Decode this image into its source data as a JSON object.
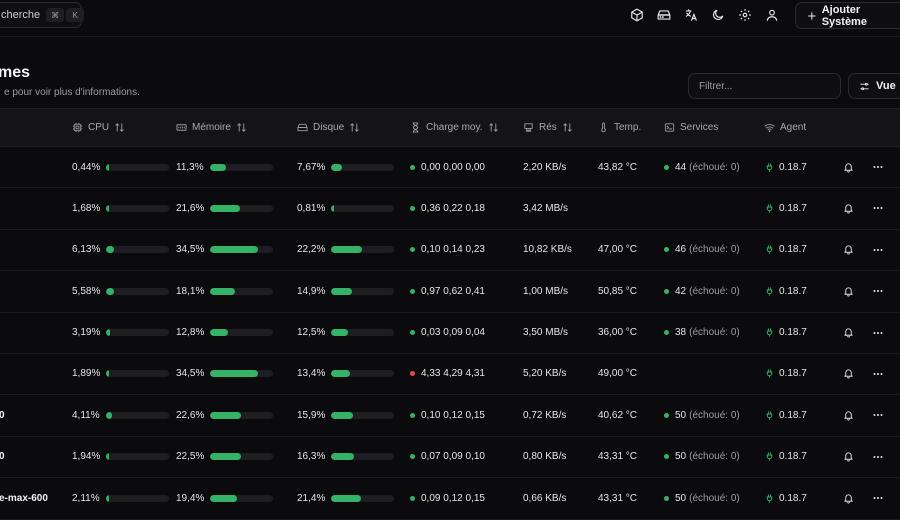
{
  "topbar": {
    "search_label": "cherche",
    "kbd_modifier": "⌘",
    "kbd_key": "K",
    "icons": [
      "cube-icon",
      "hard-drive-icon",
      "language-icon",
      "moon-icon",
      "settings-icon",
      "user-icon"
    ],
    "add_button_label": "Ajouter Système"
  },
  "header": {
    "title": "mes",
    "subtitle": "e pour voir plus d'informations.",
    "filter_placeholder": "Filtrer...",
    "view_button_label": "Vue"
  },
  "table": {
    "columns": {
      "cpu": "CPU",
      "memory": "Mémoire",
      "disk": "Disque",
      "load": "Charge moy.",
      "net": "Rés",
      "temp": "Temp.",
      "services": "Services",
      "agent": "Agent"
    },
    "rows": [
      {
        "name": "",
        "cpu": "0,44%",
        "cpu_pct": 0.44,
        "mem": "11,3%",
        "mem_pct": 11.3,
        "disk": "7,67%",
        "disk_pct": 7.67,
        "load_status": "ok",
        "load": "0,00 0,00 0,00",
        "net": "2,20 KB/s",
        "temp": "43,82 °C",
        "services": "44",
        "services_failed": "(échoué: 0)",
        "agent": "0.18.7"
      },
      {
        "name": "",
        "cpu": "1,68%",
        "cpu_pct": 1.68,
        "mem": "21,6%",
        "mem_pct": 21.6,
        "disk": "0,81%",
        "disk_pct": 0.81,
        "load_status": "ok",
        "load": "0,36 0,22 0,18",
        "net": "3,42 MB/s",
        "temp": "",
        "services": "",
        "services_failed": "",
        "agent": "0.18.7"
      },
      {
        "name": "",
        "cpu": "6,13%",
        "cpu_pct": 6.13,
        "mem": "34,5%",
        "mem_pct": 34.5,
        "disk": "22,2%",
        "disk_pct": 22.2,
        "load_status": "ok",
        "load": "0,10 0,14 0,23",
        "net": "10,82 KB/s",
        "temp": "47,00 °C",
        "services": "46",
        "services_failed": "(échoué: 0)",
        "agent": "0.18.7"
      },
      {
        "name": "",
        "cpu": "5,58%",
        "cpu_pct": 5.58,
        "mem": "18,1%",
        "mem_pct": 18.1,
        "disk": "14,9%",
        "disk_pct": 14.9,
        "load_status": "ok",
        "load": "0,97 0,62 0,41",
        "net": "1,00 MB/s",
        "temp": "50,85 °C",
        "services": "42",
        "services_failed": "(échoué: 0)",
        "agent": "0.18.7"
      },
      {
        "name": "",
        "cpu": "3,19%",
        "cpu_pct": 3.19,
        "mem": "12,8%",
        "mem_pct": 12.8,
        "disk": "12,5%",
        "disk_pct": 12.5,
        "load_status": "ok",
        "load": "0,03 0,09 0,04",
        "net": "3,50 MB/s",
        "temp": "36,00 °C",
        "services": "38",
        "services_failed": "(échoué: 0)",
        "agent": "0.18.7"
      },
      {
        "name": "",
        "cpu": "1,89%",
        "cpu_pct": 1.89,
        "mem": "34,5%",
        "mem_pct": 34.5,
        "disk": "13,4%",
        "disk_pct": 13.4,
        "load_status": "high",
        "load": "4,33 4,29 4,31",
        "net": "5,20 KB/s",
        "temp": "49,00 °C",
        "services": "",
        "services_failed": "",
        "agent": "0.18.7"
      },
      {
        "name": "0",
        "cpu": "4,11%",
        "cpu_pct": 4.11,
        "mem": "22,6%",
        "mem_pct": 22.6,
        "disk": "15,9%",
        "disk_pct": 15.9,
        "load_status": "ok",
        "load": "0,10 0,12 0,15",
        "net": "0,72 KB/s",
        "temp": "40,62 °C",
        "services": "50",
        "services_failed": "(échoué: 0)",
        "agent": "0.18.7"
      },
      {
        "name": "0",
        "cpu": "1,94%",
        "cpu_pct": 1.94,
        "mem": "22,5%",
        "mem_pct": 22.5,
        "disk": "16,3%",
        "disk_pct": 16.3,
        "load_status": "ok",
        "load": "0,07 0,09 0,10",
        "net": "0,80 KB/s",
        "temp": "43,31 °C",
        "services": "50",
        "services_failed": "(échoué: 0)",
        "agent": "0.18.7"
      },
      {
        "name": "e-max-600",
        "cpu": "2,11%",
        "cpu_pct": 2.11,
        "mem": "19,4%",
        "mem_pct": 19.4,
        "disk": "21,4%",
        "disk_pct": 21.4,
        "load_status": "ok",
        "load": "0,09 0,12 0,15",
        "net": "0,66 KB/s",
        "temp": "43,31 °C",
        "services": "50",
        "services_failed": "(échoué: 0)",
        "agent": "0.18.7"
      }
    ]
  },
  "colors": {
    "background": "#0b0b0d",
    "ok": "#34b368",
    "alert": "#e5484d",
    "bar_track": "#1d1d22"
  }
}
